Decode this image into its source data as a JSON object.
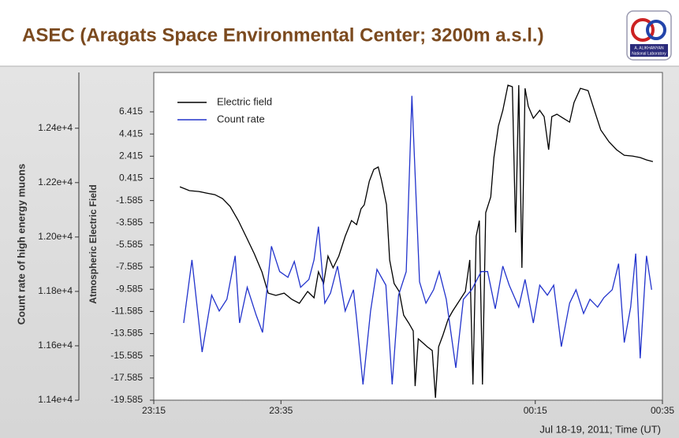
{
  "chart_data": {
    "type": "line",
    "title": "ASEC (Aragats Space Environmental Center; 3200m a.s.l.)",
    "logo_text": [
      "A. ALIKHANYAN",
      "National Laboratory"
    ],
    "ylabel": "Atmospheric Electric Field",
    "y2label": "Count rate of high energy muons",
    "xlabel": "Jul 18-19, 2011; Time (UT)",
    "xlim": [
      0,
      80
    ],
    "xticks": [
      {
        "value": 0,
        "label": "23:15"
      },
      {
        "value": 20,
        "label": "23:35"
      },
      {
        "value": 60,
        "label": "00:15"
      },
      {
        "value": 80,
        "label": "00:35"
      }
    ],
    "ylim": [
      -19.585,
      9.965
    ],
    "yticks": [
      -19.585,
      -17.585,
      -15.585,
      -13.585,
      -11.585,
      -9.585,
      -7.585,
      -5.585,
      -3.585,
      -1.585,
      0.415,
      2.415,
      4.415,
      6.415
    ],
    "y2lim": [
      11400,
      12605
    ],
    "y2ticks": [
      {
        "value": 11400,
        "label": "1.14e+4"
      },
      {
        "value": 11600,
        "label": "1.16e+4"
      },
      {
        "value": 11800,
        "label": "1.18e+4"
      },
      {
        "value": 12000,
        "label": "1.20e+4"
      },
      {
        "value": 12200,
        "label": "1.22e+4"
      },
      {
        "value": 12400,
        "label": "1.24e+4"
      }
    ],
    "legend": "upper left",
    "series": [
      {
        "name": "Electric field",
        "color": "#000000",
        "axis": "y",
        "x": [
          4.1,
          5.6,
          7.1,
          8.3,
          9.6,
          10.8,
          12.0,
          13.3,
          14.5,
          15.8,
          17.0,
          18.0,
          19.2,
          20.5,
          21.7,
          22.9,
          24.2,
          25.2,
          25.9,
          26.7,
          27.4,
          28.2,
          29.1,
          30.1,
          31.1,
          31.9,
          32.6,
          33.1,
          33.9,
          34.6,
          35.3,
          35.8,
          36.6,
          37.1,
          37.8,
          38.6,
          39.3,
          40.1,
          40.8,
          41.1,
          41.6,
          42.3,
          43.0,
          43.8,
          44.3,
          44.8,
          45.5,
          46.3,
          47.0,
          47.8,
          49.0,
          49.7,
          50.2,
          50.7,
          51.2,
          51.7,
          52.2,
          53.0,
          53.5,
          54.2,
          54.9,
          55.7,
          56.4,
          56.9,
          57.4,
          57.9,
          58.4,
          58.9,
          59.7,
          60.7,
          61.4,
          62.1,
          62.6,
          63.4,
          64.4,
          65.4,
          66.1,
          67.1,
          68.3,
          69.3,
          70.3,
          71.6,
          72.8,
          74.0,
          75.3,
          76.5,
          77.5,
          78.5
        ],
        "values": [
          -0.34,
          -0.69,
          -0.77,
          -0.91,
          -1.05,
          -1.4,
          -2.11,
          -3.39,
          -4.81,
          -6.37,
          -8.01,
          -9.93,
          -10.14,
          -9.93,
          -10.49,
          -10.85,
          -9.78,
          -10.35,
          -8.01,
          -9.07,
          -6.59,
          -7.65,
          -6.59,
          -4.81,
          -3.39,
          -3.75,
          -2.33,
          -1.97,
          0.16,
          1.22,
          1.44,
          0.3,
          -1.97,
          -6.94,
          -9.07,
          -9.78,
          -11.92,
          -12.63,
          -13.34,
          -18.31,
          -14.05,
          -14.4,
          -14.76,
          -15.11,
          -19.37,
          -14.76,
          -13.69,
          -12.27,
          -11.56,
          -10.85,
          -9.78,
          -6.94,
          -18.17,
          -4.81,
          -3.39,
          -18.17,
          -2.68,
          -1.26,
          2.29,
          5.13,
          6.55,
          8.82,
          8.68,
          -4.46,
          8.82,
          -7.65,
          8.54,
          6.91,
          5.84,
          6.55,
          5.98,
          3.0,
          5.98,
          6.2,
          5.84,
          5.49,
          7.26,
          8.54,
          8.33,
          6.55,
          4.78,
          3.71,
          3.0,
          2.5,
          2.43,
          2.29,
          2.08,
          1.93
        ]
      },
      {
        "name": "Count rate",
        "color": "#2233cc",
        "axis": "y2",
        "x": [
          4.7,
          6.0,
          7.6,
          9.1,
          10.3,
          11.5,
          12.8,
          13.5,
          14.7,
          16.1,
          17.1,
          18.5,
          19.8,
          21.1,
          22.1,
          23.1,
          24.4,
          25.2,
          25.9,
          26.9,
          27.8,
          28.9,
          30.1,
          31.4,
          31.9,
          32.9,
          34.1,
          35.1,
          36.5,
          37.5,
          38.5,
          39.7,
          40.6,
          41.8,
          42.8,
          44.0,
          44.9,
          46.0,
          47.5,
          48.7,
          50.0,
          51.5,
          52.5,
          53.7,
          54.9,
          55.9,
          57.4,
          58.4,
          59.7,
          60.7,
          61.9,
          62.9,
          64.1,
          65.4,
          66.4,
          67.6,
          68.6,
          69.8,
          70.8,
          72.1,
          73.1,
          74.0,
          75.0,
          75.8,
          76.5,
          77.5,
          78.3
        ],
        "values": [
          11684,
          11916,
          11577,
          11786,
          11728,
          11771,
          11931,
          11684,
          11815,
          11713,
          11649,
          11966,
          11873,
          11852,
          11910,
          11815,
          11844,
          11916,
          12038,
          11757,
          11794,
          11893,
          11728,
          11806,
          11699,
          11458,
          11728,
          11881,
          11823,
          11458,
          11786,
          11873,
          12519,
          11835,
          11757,
          11806,
          11873,
          11771,
          11519,
          11771,
          11806,
          11873,
          11873,
          11736,
          11893,
          11823,
          11742,
          11844,
          11684,
          11823,
          11786,
          11823,
          11597,
          11757,
          11806,
          11719,
          11771,
          11742,
          11777,
          11806,
          11902,
          11612,
          11742,
          11939,
          11554,
          11931,
          11806
        ]
      }
    ]
  }
}
